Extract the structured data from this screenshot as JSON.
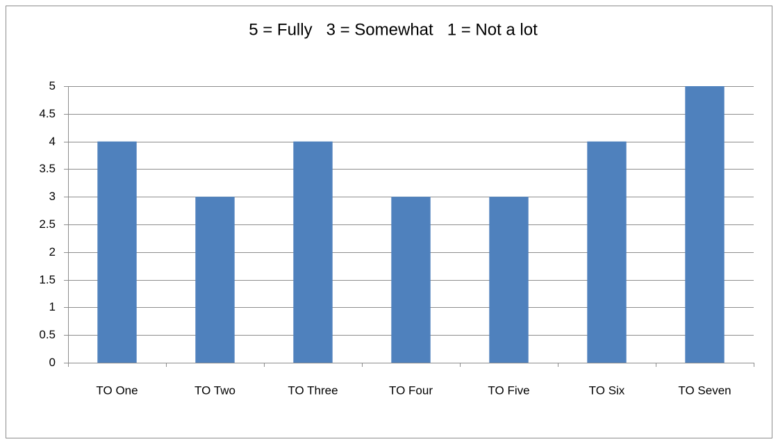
{
  "chart_data": {
    "type": "bar",
    "title": "5 = Fully   3 = Somewhat   1 = Not a lot",
    "categories": [
      "TO One",
      "TO Two",
      "TO Three",
      "TO Four",
      "TO Five",
      "TO Six",
      "TO Seven"
    ],
    "values": [
      4,
      3,
      4,
      3,
      3,
      4,
      5
    ],
    "color": "#4f81bd",
    "ylim": [
      0,
      5
    ],
    "yticks": [
      0,
      0.5,
      1,
      1.5,
      2,
      2.5,
      3,
      3.5,
      4,
      4.5,
      5
    ],
    "grid": true
  }
}
